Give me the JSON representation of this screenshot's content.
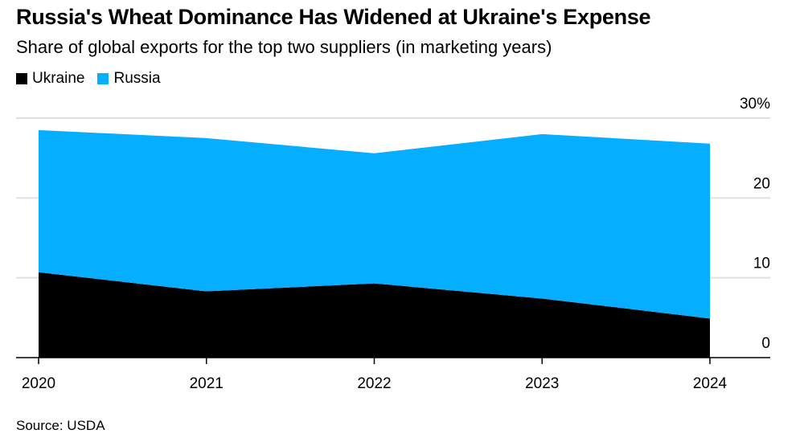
{
  "title": "Russia's Wheat Dominance Has Widened at Ukraine's Expense",
  "subtitle": "Share of global exports for the top two suppliers (in marketing years)",
  "source": "Source: USDA",
  "chart_data": {
    "type": "area",
    "stacked": true,
    "x": [
      "2020",
      "2021",
      "2022",
      "2023",
      "2024"
    ],
    "series": [
      {
        "name": "Ukraine",
        "color": "#000000",
        "values": [
          10.7,
          8.3,
          9.3,
          7.4,
          4.9
        ]
      },
      {
        "name": "Russia",
        "color": "#06aeff",
        "values": [
          17.8,
          19.2,
          16.3,
          20.6,
          21.9
        ]
      }
    ],
    "ylim": [
      0,
      30
    ],
    "yticks": [
      0,
      10,
      20,
      30
    ],
    "ytick_labels": [
      "0",
      "10",
      "20",
      "30%"
    ],
    "y_axis_side": "right",
    "grid": true,
    "legend_placement": "top-left"
  }
}
